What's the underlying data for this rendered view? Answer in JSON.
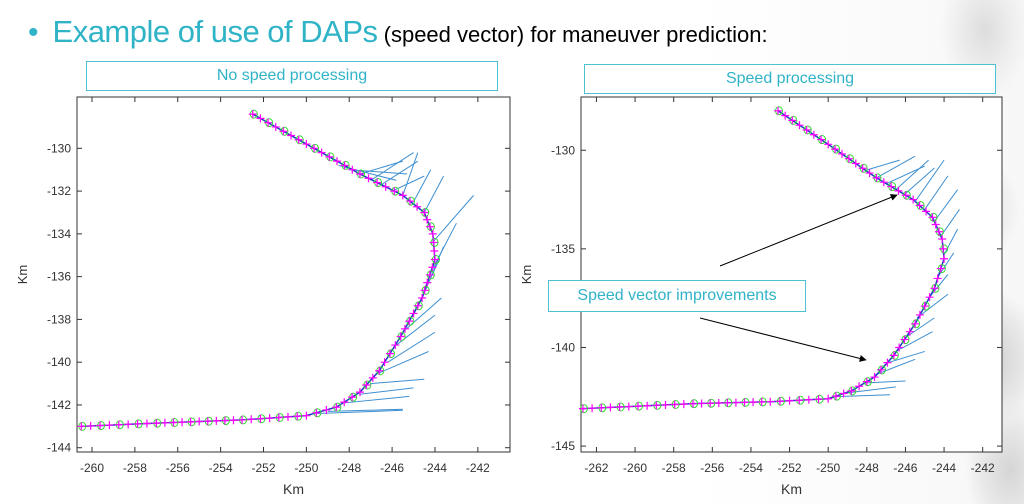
{
  "title": {
    "highlight": "Example of use of DAPs",
    "rest": " (speed vector) for maneuver prediction:"
  },
  "annotation": "Speed vector improvements",
  "colors": {
    "accent": "#2fb3c6",
    "track": "#1f3fbf",
    "markers_plus": "#ff00ff",
    "markers_circle": "#33dd33",
    "vectors": "#3d8fd1"
  },
  "chart_data": [
    {
      "type": "line",
      "panel_label": "No speed processing",
      "xlabel": "Km",
      "ylabel": "Km",
      "xlim": [
        -260.7,
        -240.5
      ],
      "ylim": [
        -144.2,
        -127.6
      ],
      "xticks": [
        -260,
        -258,
        -256,
        -254,
        -252,
        -250,
        -248,
        -246,
        -244,
        -242
      ],
      "yticks": [
        -130,
        -132,
        -134,
        -136,
        -138,
        -140,
        -142,
        -144
      ],
      "track": [
        [
          -252.5,
          -128.4
        ],
        [
          -250,
          -129.8
        ],
        [
          -247.5,
          -131.2
        ],
        [
          -245.5,
          -132.2
        ],
        [
          -244.5,
          -133
        ],
        [
          -244.1,
          -134
        ],
        [
          -244,
          -135.2
        ],
        [
          -244.6,
          -137
        ],
        [
          -245.6,
          -138.8
        ],
        [
          -246.6,
          -140.4
        ],
        [
          -247.5,
          -141.4
        ],
        [
          -248.6,
          -142.1
        ],
        [
          -250,
          -142.5
        ],
        [
          -253,
          -142.7
        ],
        [
          -257,
          -142.85
        ],
        [
          -260.5,
          -143
        ]
      ],
      "vectors": [
        [
          -248.5,
          -130.8,
          -245.8,
          -131.5
        ],
        [
          -248,
          -131,
          -245.3,
          -131.2
        ],
        [
          -247.5,
          -131.2,
          -245.5,
          -130.6
        ],
        [
          -247,
          -131.5,
          -245,
          -130.2
        ],
        [
          -246.5,
          -131.7,
          -244.8,
          -130.6
        ],
        [
          -246,
          -132,
          -244.5,
          -131.3
        ],
        [
          -245.5,
          -132.2,
          -244.8,
          -130.2
        ],
        [
          -245,
          -132.5,
          -244.2,
          -131
        ],
        [
          -244.5,
          -133,
          -243.6,
          -131.3
        ],
        [
          -244.2,
          -134.5,
          -242.2,
          -132.2
        ],
        [
          -244.3,
          -136,
          -243,
          -133.5
        ],
        [
          -244.6,
          -137,
          -243.6,
          -134.6
        ],
        [
          -245,
          -137.8,
          -243.8,
          -135.2
        ],
        [
          -245.4,
          -138.5,
          -243.7,
          -137
        ],
        [
          -245.8,
          -139.2,
          -244,
          -137.8
        ],
        [
          -246.2,
          -140,
          -244,
          -138.6
        ],
        [
          -246.6,
          -140.5,
          -244.3,
          -139.5
        ],
        [
          -247,
          -141,
          -244.5,
          -140.8
        ],
        [
          -247.5,
          -141.5,
          -245,
          -141.2
        ],
        [
          -248.2,
          -141.9,
          -245.2,
          -141.6
        ],
        [
          -249,
          -142.3,
          -245.5,
          -142.2
        ],
        [
          -249.5,
          -142.4,
          -245.5,
          -142.25
        ]
      ]
    },
    {
      "type": "line",
      "panel_label": "Speed processing",
      "xlabel": "Km",
      "ylabel": "Km",
      "xlim": [
        -262.8,
        -241
      ],
      "ylim": [
        -145.3,
        -127.3
      ],
      "xticks": [
        -262,
        -260,
        -258,
        -256,
        -254,
        -252,
        -250,
        -248,
        -246,
        -244,
        -242
      ],
      "yticks": [
        -130,
        -135,
        -140,
        -145
      ],
      "track": [
        [
          -252.6,
          -128
        ],
        [
          -250,
          -129.7
        ],
        [
          -247.5,
          -131.4
        ],
        [
          -245.6,
          -132.5
        ],
        [
          -244.6,
          -133.4
        ],
        [
          -244.1,
          -134.5
        ],
        [
          -244,
          -135.5
        ],
        [
          -244.5,
          -137
        ],
        [
          -245.5,
          -138.8
        ],
        [
          -246.6,
          -140.4
        ],
        [
          -247.6,
          -141.5
        ],
        [
          -248.8,
          -142.2
        ],
        [
          -250,
          -142.6
        ],
        [
          -253,
          -142.75
        ],
        [
          -257,
          -142.85
        ],
        [
          -262.7,
          -143.1
        ]
      ],
      "vectors": [
        [
          -248,
          -131,
          -246.3,
          -130.5
        ],
        [
          -247.5,
          -131.4,
          -245.5,
          -130.3
        ],
        [
          -247,
          -131.7,
          -245,
          -130.8
        ],
        [
          -246.5,
          -132,
          -244.8,
          -130.5
        ],
        [
          -246,
          -132.2,
          -244.5,
          -130.9
        ],
        [
          -245.5,
          -132.6,
          -244,
          -130.5
        ],
        [
          -245,
          -133,
          -243.8,
          -131.3
        ],
        [
          -244.5,
          -133.6,
          -243.3,
          -132
        ],
        [
          -244.2,
          -134.4,
          -243.2,
          -133
        ],
        [
          -244,
          -135.3,
          -243.3,
          -134
        ],
        [
          -244.3,
          -136.4,
          -243.5,
          -135.2
        ],
        [
          -244.8,
          -137.5,
          -243.8,
          -136.3
        ],
        [
          -245.4,
          -138.5,
          -243.8,
          -137.3
        ],
        [
          -246,
          -139.5,
          -244.5,
          -138.5
        ],
        [
          -246.5,
          -140.2,
          -244.6,
          -139.2
        ],
        [
          -247,
          -140.8,
          -245,
          -140.2
        ],
        [
          -247.6,
          -141.4,
          -245.5,
          -140.6
        ],
        [
          -248.2,
          -141.8,
          -246,
          -141.7
        ],
        [
          -249,
          -142.3,
          -246.5,
          -142
        ],
        [
          -249.8,
          -142.5,
          -246.8,
          -142.4
        ]
      ]
    }
  ]
}
